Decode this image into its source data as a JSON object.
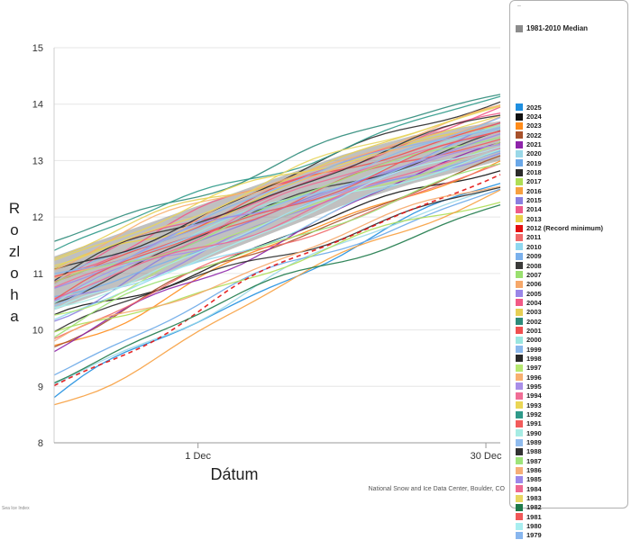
{
  "chart_data": {
    "type": "line",
    "title": "",
    "xlabel": "Dátum",
    "ylabel": "Rozloha",
    "x_range_days": [
      0,
      31
    ],
    "x_ticks": [
      {
        "day": 10,
        "label": "1 Dec"
      },
      {
        "day": 30,
        "label": "30 Dec"
      }
    ],
    "ylim": [
      8,
      15
    ],
    "y_ticks": [
      8,
      9,
      10,
      11,
      12,
      13,
      14,
      15
    ],
    "median_label": "1981-2010 Median",
    "median_color": "#8c8c8c",
    "median_band": {
      "x": [
        0,
        5,
        10,
        15,
        20,
        25,
        31
      ],
      "low": [
        10.35,
        10.8,
        11.2,
        11.7,
        12.2,
        12.6,
        13.0
      ],
      "high": [
        11.3,
        11.75,
        12.2,
        12.65,
        13.1,
        13.45,
        13.7
      ]
    },
    "legend_corner": "–",
    "credit": "National Snow and Ice Data Center, Boulder, CO",
    "footnote": "Sea Ice Index",
    "years": [
      {
        "name": "2025",
        "color": "#1f8fe0",
        "start": 8.8,
        "end": 12.6
      },
      {
        "name": "2024",
        "color": "#111111",
        "start": 10.1,
        "end": 12.9
      },
      {
        "name": "2023",
        "color": "#ff8c1a",
        "start": 9.7,
        "end": 13.0
      },
      {
        "name": "2022",
        "color": "#a8522c",
        "start": 9.8,
        "end": 13.0
      },
      {
        "name": "2021",
        "color": "#8e24aa",
        "start": 9.6,
        "end": 13.3
      },
      {
        "name": "2020",
        "color": "#9ad8e8",
        "start": 9.0,
        "end": 12.6
      },
      {
        "name": "2019",
        "color": "#6aa8e8",
        "start": 9.3,
        "end": 12.5
      },
      {
        "name": "2018",
        "color": "#2b2b2b",
        "start": 10.0,
        "end": 12.5
      },
      {
        "name": "2017",
        "color": "#aede55",
        "start": 9.8,
        "end": 12.3
      },
      {
        "name": "2016",
        "color": "#f7a040",
        "start": 8.6,
        "end": 12.5
      },
      {
        "name": "2015",
        "color": "#8a7fe0",
        "start": 10.3,
        "end": 13.6
      },
      {
        "name": "2014",
        "color": "#ee5a8a",
        "start": 10.9,
        "end": 13.8
      },
      {
        "name": "2013",
        "color": "#e8d24a",
        "start": 11.0,
        "end": 13.7
      },
      {
        "name": "2012 (Record minimum)",
        "color": "#e31010",
        "start": 9.0,
        "end": 12.8
      },
      {
        "name": "2011",
        "color": "#f06a6a",
        "start": 9.9,
        "end": 12.9
      },
      {
        "name": "2010",
        "color": "#8fd8f0",
        "start": 10.1,
        "end": 13.1
      },
      {
        "name": "2009",
        "color": "#7ab0ec",
        "start": 10.5,
        "end": 13.2
      },
      {
        "name": "2008",
        "color": "#3a3a3a",
        "start": 10.6,
        "end": 13.5
      },
      {
        "name": "2007",
        "color": "#9ae070",
        "start": 10.0,
        "end": 12.9
      },
      {
        "name": "2006",
        "color": "#f6a86a",
        "start": 9.7,
        "end": 12.6
      },
      {
        "name": "2005",
        "color": "#9a86e8",
        "start": 10.4,
        "end": 13.2
      },
      {
        "name": "2004",
        "color": "#f25a86",
        "start": 11.0,
        "end": 13.9
      },
      {
        "name": "2003",
        "color": "#e6cf55",
        "start": 11.3,
        "end": 13.9
      },
      {
        "name": "2002",
        "color": "#2e8b7a",
        "start": 11.5,
        "end": 14.2
      },
      {
        "name": "2001",
        "color": "#f05050",
        "start": 10.9,
        "end": 13.7
      },
      {
        "name": "2000",
        "color": "#9ae6e0",
        "start": 10.6,
        "end": 13.6
      },
      {
        "name": "1999",
        "color": "#8ab8ec",
        "start": 10.8,
        "end": 13.6
      },
      {
        "name": "1998",
        "color": "#2a2a2a",
        "start": 10.9,
        "end": 14.1
      },
      {
        "name": "1997",
        "color": "#b6e870",
        "start": 10.3,
        "end": 13.3
      },
      {
        "name": "1996",
        "color": "#f8b070",
        "start": 11.2,
        "end": 13.9
      },
      {
        "name": "1995",
        "color": "#a98ee8",
        "start": 10.5,
        "end": 13.3
      },
      {
        "name": "1994",
        "color": "#f06e96",
        "start": 10.7,
        "end": 13.6
      },
      {
        "name": "1993",
        "color": "#ead655",
        "start": 11.3,
        "end": 13.8
      },
      {
        "name": "1992",
        "color": "#2f9a8a",
        "start": 11.4,
        "end": 14.1
      },
      {
        "name": "1991",
        "color": "#f25c5c",
        "start": 10.8,
        "end": 13.4
      },
      {
        "name": "1990",
        "color": "#a6ece4",
        "start": 10.4,
        "end": 13.2
      },
      {
        "name": "1989",
        "color": "#90bcee",
        "start": 10.6,
        "end": 13.5
      },
      {
        "name": "1988",
        "color": "#333333",
        "start": 10.9,
        "end": 13.8
      },
      {
        "name": "1987",
        "color": "#9ee47a",
        "start": 10.7,
        "end": 13.5
      },
      {
        "name": "1986",
        "color": "#f6ae78",
        "start": 10.9,
        "end": 13.8
      },
      {
        "name": "1985",
        "color": "#9c88ea",
        "start": 10.8,
        "end": 13.4
      },
      {
        "name": "1984",
        "color": "#ee6890",
        "start": 10.5,
        "end": 13.2
      },
      {
        "name": "1983",
        "color": "#e8d660",
        "start": 11.1,
        "end": 14.0
      },
      {
        "name": "1982",
        "color": "#1e7a4a",
        "start": 9.2,
        "end": 12.2
      },
      {
        "name": "1981",
        "color": "#f05858",
        "start": 10.6,
        "end": 13.5
      },
      {
        "name": "1980",
        "color": "#a8eef0",
        "start": 10.2,
        "end": 13.3
      },
      {
        "name": "1979",
        "color": "#88b6ee",
        "start": 10.9,
        "end": 13.8
      }
    ]
  }
}
